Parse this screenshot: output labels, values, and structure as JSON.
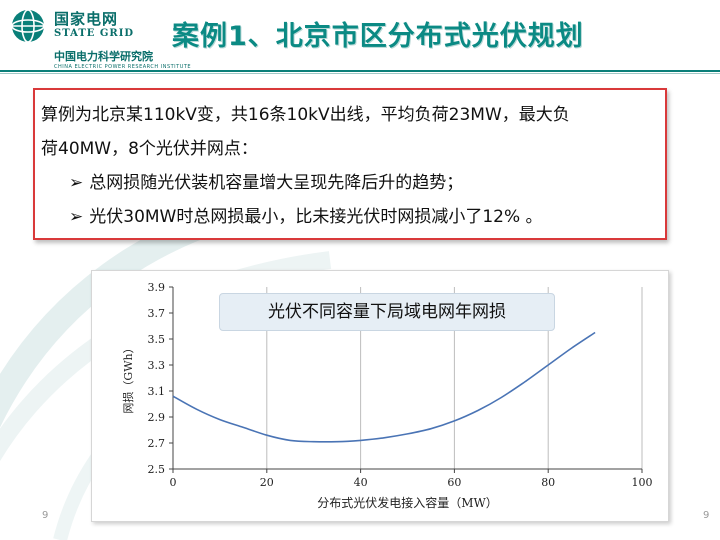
{
  "header": {
    "logo_cn": "国家电网",
    "logo_en": "STATE GRID",
    "logo_cn2": "中国电力科学研究院",
    "logo_en2": "CHINA ELECTRIC POWER RESEARCH INSTITUTE",
    "title": "案例1、北京市区分布式光伏规划"
  },
  "info": {
    "intro_line1": "算例为北京某110kV变，共16条10kV出线，平均负荷23MW，最大负",
    "intro_line2": "荷40MW，8个光伏并网点：",
    "bullets": [
      "总网损随光伏装机容量增大呈现先降后升的趋势；",
      "光伏30MW时总网损最小，比未接光伏时网损减小了12% 。"
    ],
    "arrow": "➢"
  },
  "chart_data": {
    "type": "line",
    "title": "光伏不同容量下局域电网年网损",
    "xlabel": "分布式光伏发电接入容量（MW）",
    "ylabel": "网损（GWh）",
    "xlim": [
      0,
      100
    ],
    "ylim": [
      2.5,
      3.9
    ],
    "xticks": [
      0,
      20,
      40,
      60,
      80,
      100
    ],
    "yticks": [
      2.5,
      2.7,
      2.9,
      3.1,
      3.3,
      3.5,
      3.7,
      3.9
    ],
    "grid": "vertical",
    "series": [
      {
        "color": "#4a74b5",
        "x": [
          0,
          5,
          10,
          15,
          20,
          25,
          30,
          35,
          40,
          45,
          50,
          55,
          60,
          65,
          70,
          75,
          80,
          85,
          90
        ],
        "y": [
          3.06,
          2.96,
          2.88,
          2.82,
          2.76,
          2.72,
          2.71,
          2.71,
          2.72,
          2.74,
          2.77,
          2.81,
          2.87,
          2.95,
          3.05,
          3.17,
          3.3,
          3.43,
          3.55
        ]
      }
    ]
  },
  "footer": {
    "page_left": "9",
    "page_right": "9"
  }
}
